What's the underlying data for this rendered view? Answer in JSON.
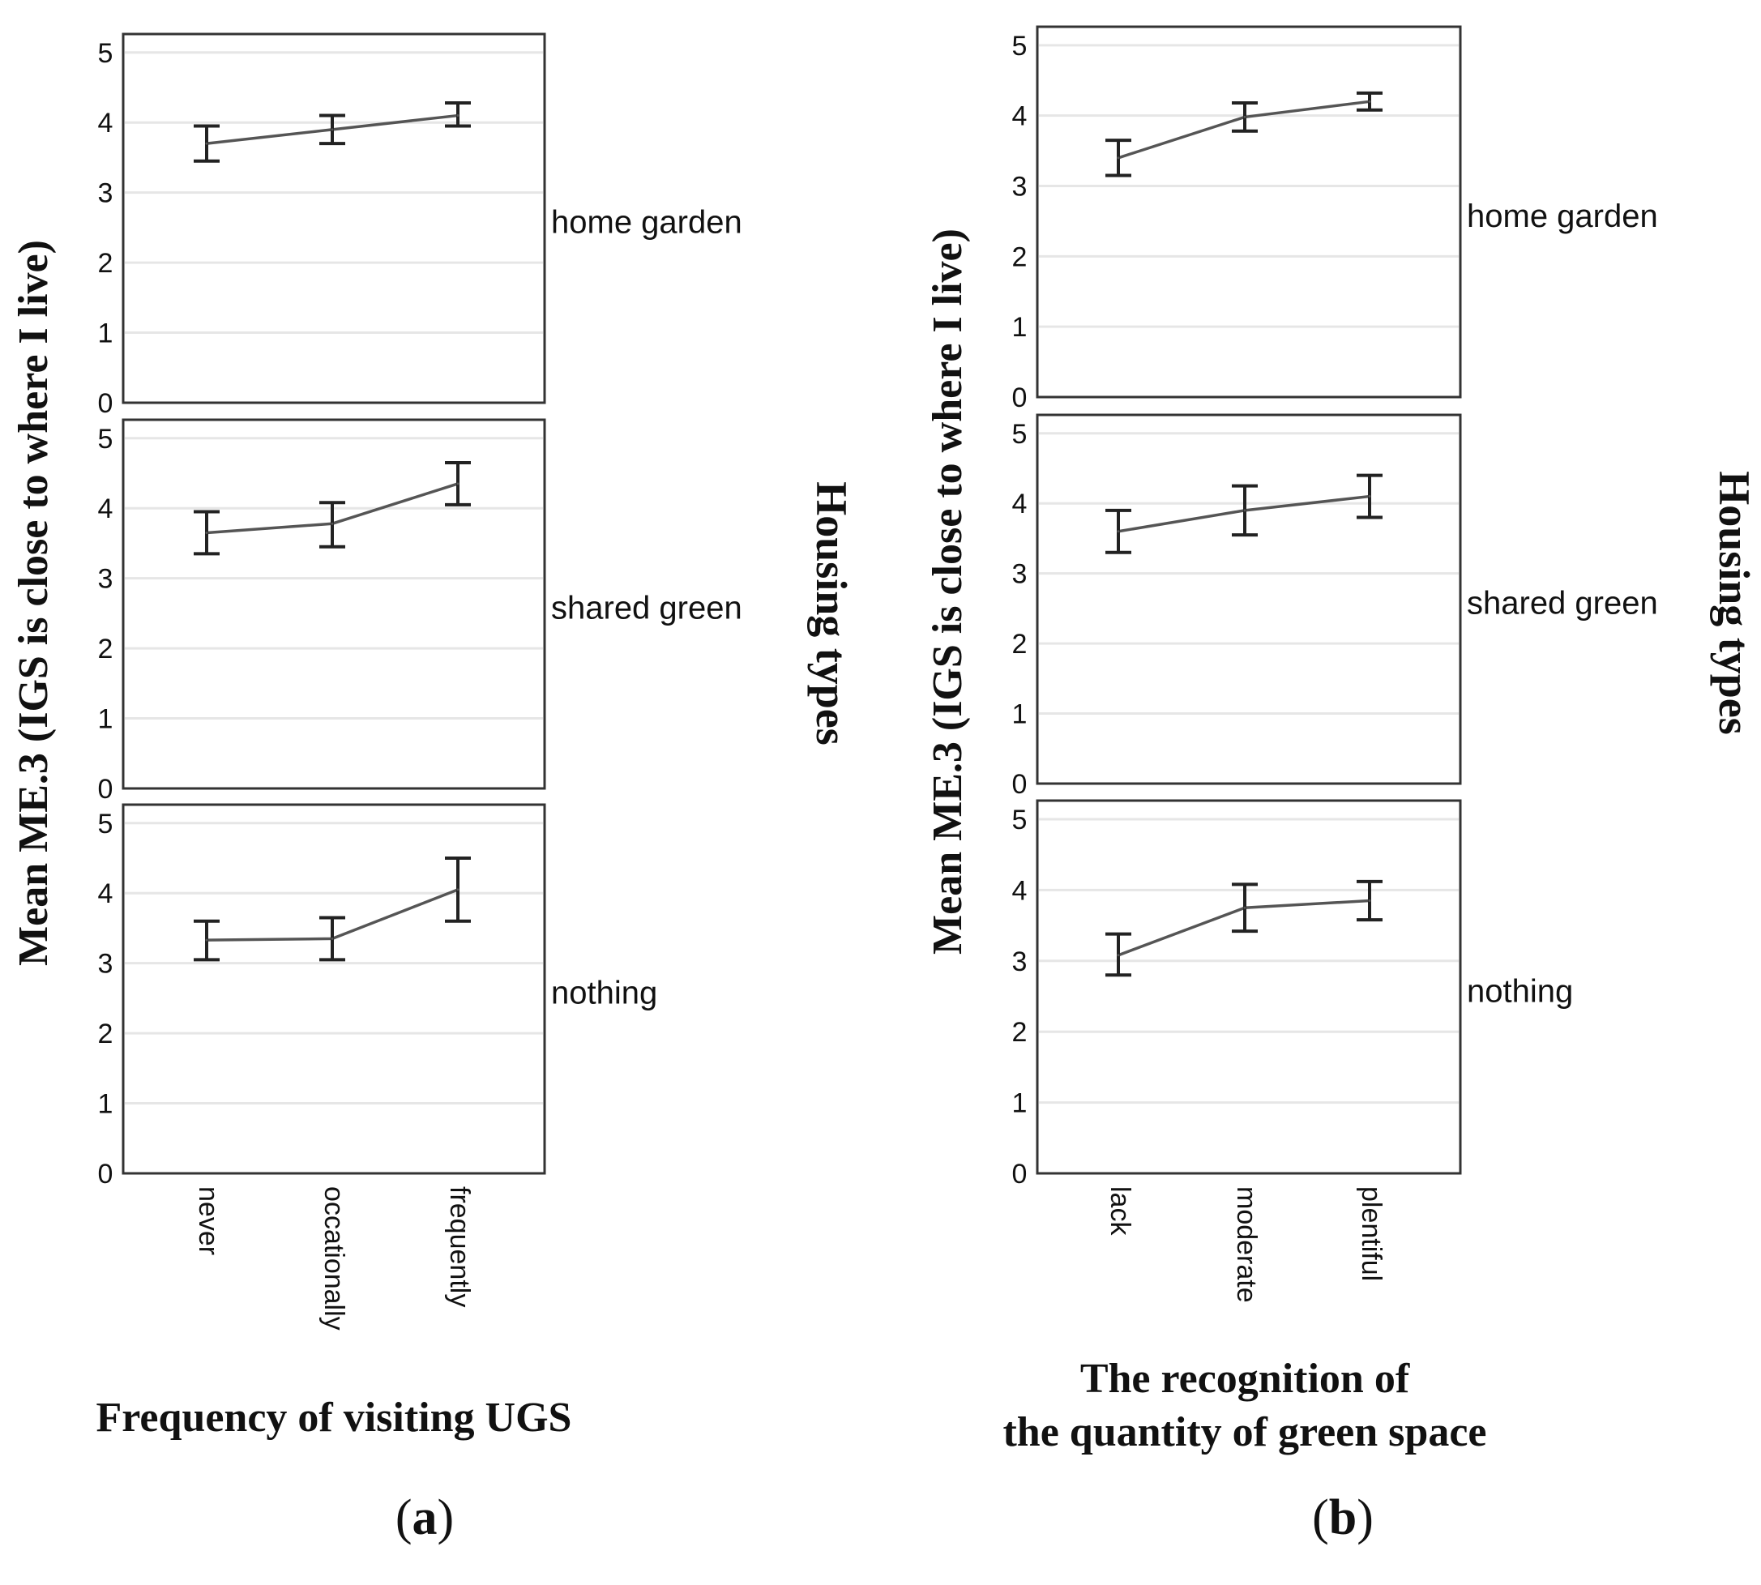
{
  "colors": {
    "line": "#555555",
    "errorbar": "#222222",
    "grid": "#e6e6e6",
    "frame": "#333333"
  },
  "chart_data": [
    {
      "type": "line",
      "panel_label": "a",
      "ylabel": "Mean ME.3 (IGS is close to where I live)",
      "xlabel": "Frequency of visiting UGS",
      "xlabel_lines": [
        "Frequency of visiting UGS"
      ],
      "facet_title": "Housing types",
      "categories": [
        "never",
        "occationally",
        "frequently"
      ],
      "ylim": [
        0,
        5
      ],
      "yticks": [
        "0",
        "1",
        "2",
        "3",
        "4",
        "5"
      ],
      "series": [
        {
          "name": "home garden",
          "values": [
            3.7,
            3.9,
            4.1
          ],
          "lower": [
            3.45,
            3.7,
            3.95
          ],
          "upper": [
            3.95,
            4.1,
            4.28
          ]
        },
        {
          "name": "shared green",
          "values": [
            3.65,
            3.78,
            4.35
          ],
          "lower": [
            3.35,
            3.45,
            4.05
          ],
          "upper": [
            3.95,
            4.08,
            4.65
          ]
        },
        {
          "name": "nothing",
          "values": [
            3.33,
            3.35,
            4.05
          ],
          "lower": [
            3.05,
            3.05,
            3.6
          ],
          "upper": [
            3.6,
            3.65,
            4.5
          ]
        }
      ]
    },
    {
      "type": "line",
      "panel_label": "b",
      "ylabel": "Mean ME.3 (IGS is close to where I live)",
      "xlabel": "The recognition of the quantity of green space",
      "xlabel_lines": [
        "The recognition of",
        "the quantity of green space"
      ],
      "facet_title": "Housing types",
      "categories": [
        "lack",
        "moderate",
        "plentiful"
      ],
      "ylim": [
        0,
        5
      ],
      "yticks": [
        "0",
        "1",
        "2",
        "3",
        "4",
        "5"
      ],
      "series": [
        {
          "name": "home garden",
          "values": [
            3.4,
            3.98,
            4.2
          ],
          "lower": [
            3.15,
            3.78,
            4.08
          ],
          "upper": [
            3.65,
            4.18,
            4.32
          ]
        },
        {
          "name": "shared green",
          "values": [
            3.6,
            3.9,
            4.1
          ],
          "lower": [
            3.3,
            3.55,
            3.8
          ],
          "upper": [
            3.9,
            4.25,
            4.4
          ]
        },
        {
          "name": "nothing",
          "values": [
            3.08,
            3.75,
            3.85
          ],
          "lower": [
            2.8,
            3.42,
            3.58
          ],
          "upper": [
            3.38,
            4.08,
            4.12
          ]
        }
      ]
    }
  ]
}
